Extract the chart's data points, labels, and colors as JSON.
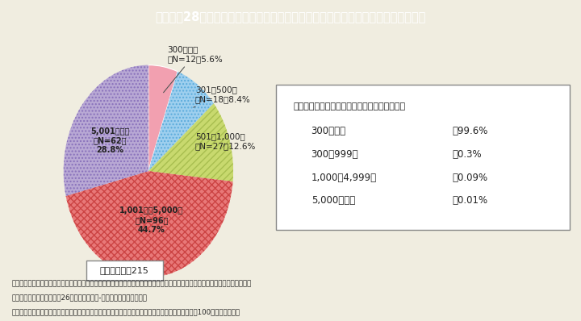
{
  "title": "Ｉ－特－28図　企業規模別の「えるぼし」認定企業数と認定企業総数に占める割合",
  "title_bg": "#29b4c8",
  "background_color": "#f0ede0",
  "values": [
    5.6,
    8.4,
    12.6,
    44.7,
    28.8
  ],
  "colors": [
    "#f2a0b0",
    "#9ecfee",
    "#c8d96e",
    "#e87878",
    "#b8a8d4"
  ],
  "hatch_patterns": [
    "",
    "....",
    "////",
    "xxxx",
    "...."
  ],
  "hatch_colors": [
    "#f2a0b0",
    "#5aabdc",
    "#a8be50",
    "#cc4444",
    "#8870bb"
  ],
  "inner_labels": [
    "",
    "",
    "",
    "1,001人～5,000人\n（N=96）\n44.7%",
    "5,001人以上\n（N=62）\n28.8%"
  ],
  "outer_label_texts": [
    "300人以下\n（N=12）5.6%",
    "301～500人\n（N=18）8.4%",
    "501～1,000人\n（N=27）12.6%",
    "",
    ""
  ],
  "total_label": "認定企業数：215",
  "reference_title": "【参考】総企業数に占める規模別企業数の割合",
  "reference_items": [
    [
      "300人未満",
      "：99.6%"
    ],
    [
      "300～999人",
      "：0.3%"
    ],
    [
      "1,000～4,999人",
      "：0.09%"
    ],
    [
      "5,000人以上",
      "：0.01%"
    ]
  ],
  "footnote1": "（備考）　１．厚生労働省ホームページ掲載資料を基に内閣府男女共同参画局にて作成。総企業数に占める規模別企業数の割合は",
  "footnote2": "　　　　　　総務省「平成26年経済センサス-基礎調査」により作成。",
  "footnote3": "　　　　２．認定企業総数に占める割合は，小数点以下第２位を四捨五入しているため，合計しても100とはならない。"
}
